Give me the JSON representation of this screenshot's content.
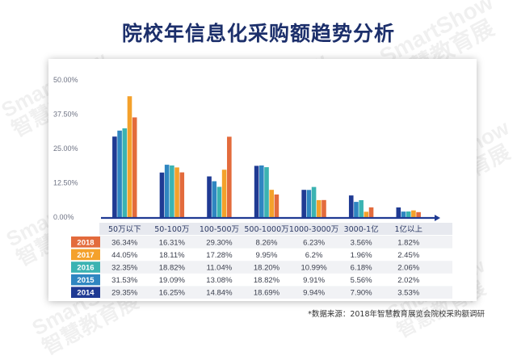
{
  "title": "院校年信息化采购额趋势分析",
  "source": "*数据来源：2018年智慧教育展览会院校采购额调研",
  "watermark": {
    "line1": "SmartShow",
    "line2": "智慧教育展"
  },
  "colors": {
    "2014": "#1f3a93",
    "2015": "#2f86c1",
    "2016": "#3bb3b2",
    "2017": "#f4a12b",
    "2018": "#e36b3c",
    "axis": "#1f3a93",
    "category_bg": "#e7e9ef",
    "row_alt": "#f1f2f5"
  },
  "chart_data": {
    "type": "bar",
    "categories": [
      "50万以下",
      "50-100万",
      "100-500万",
      "500-1000万",
      "1000-3000万",
      "3000-1亿",
      "1亿以上"
    ],
    "y_ticks": [
      "50.00%",
      "37.50%",
      "25.00%",
      "12.50%",
      "0.00%"
    ],
    "ylim": [
      0,
      50
    ],
    "series": [
      {
        "name": "2014",
        "values": [
          29.35,
          16.25,
          14.84,
          18.69,
          9.94,
          7.9,
          3.53
        ],
        "labels": [
          "29.35%",
          "16.25%",
          "14.84%",
          "18.69%",
          "9.94%",
          "7.90%",
          "3.53%"
        ]
      },
      {
        "name": "2015",
        "values": [
          31.53,
          19.09,
          13.08,
          18.82,
          9.91,
          5.56,
          2.02
        ],
        "labels": [
          "31.53%",
          "19.09%",
          "13.08%",
          "18.82%",
          "9.91%",
          "5.56%",
          "2.02%"
        ]
      },
      {
        "name": "2016",
        "values": [
          32.35,
          18.82,
          11.04,
          18.2,
          10.99,
          6.18,
          2.06
        ],
        "labels": [
          "32.35%",
          "18.82%",
          "11.04%",
          "18.20%",
          "10.99%",
          "6.18%",
          "2.06%"
        ]
      },
      {
        "name": "2017",
        "values": [
          44.05,
          18.11,
          17.28,
          9.95,
          6.2,
          1.96,
          2.45
        ],
        "labels": [
          "44.05%",
          "18.11%",
          "17.28%",
          "9.95%",
          "6.2%",
          "1.96%",
          "2.45%"
        ]
      },
      {
        "name": "2018",
        "values": [
          36.34,
          16.31,
          29.3,
          8.26,
          6.23,
          3.56,
          1.82
        ],
        "labels": [
          "36.34%",
          "16.31%",
          "29.30%",
          "8.26%",
          "6.23%",
          "3.56%",
          "1.82%"
        ]
      }
    ],
    "table_row_order": [
      "2018",
      "2017",
      "2016",
      "2015",
      "2014"
    ],
    "legend": "table-left",
    "grid": false
  }
}
